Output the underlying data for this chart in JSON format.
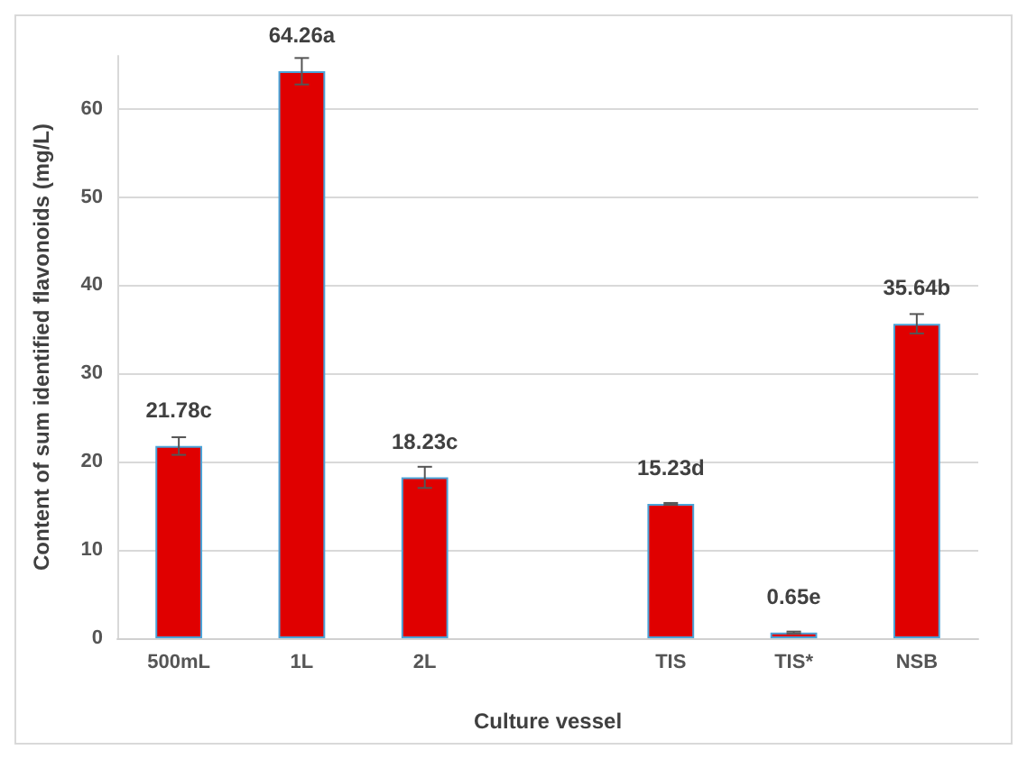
{
  "chart_data": {
    "type": "bar",
    "xlabel": "Culture vessel",
    "ylabel": "Content of sum identified flavonoids (mg/L)",
    "categories": [
      "500mL",
      "1L",
      "2L",
      null,
      "TIS",
      "TIS*",
      "NSB"
    ],
    "values": [
      21.78,
      64.26,
      18.23,
      null,
      15.23,
      0.65,
      35.64
    ],
    "errors": [
      1.0,
      1.5,
      1.2,
      null,
      0.1,
      0.1,
      1.1
    ],
    "value_labels": [
      "21.78c",
      "64.26a",
      "18.23c",
      null,
      "15.23d",
      "0.65e",
      "35.64b"
    ],
    "color": "#e00000",
    "ylim": [
      0,
      66
    ],
    "yticks": [
      0,
      10,
      20,
      30,
      40,
      50,
      60
    ],
    "grid": "y"
  }
}
